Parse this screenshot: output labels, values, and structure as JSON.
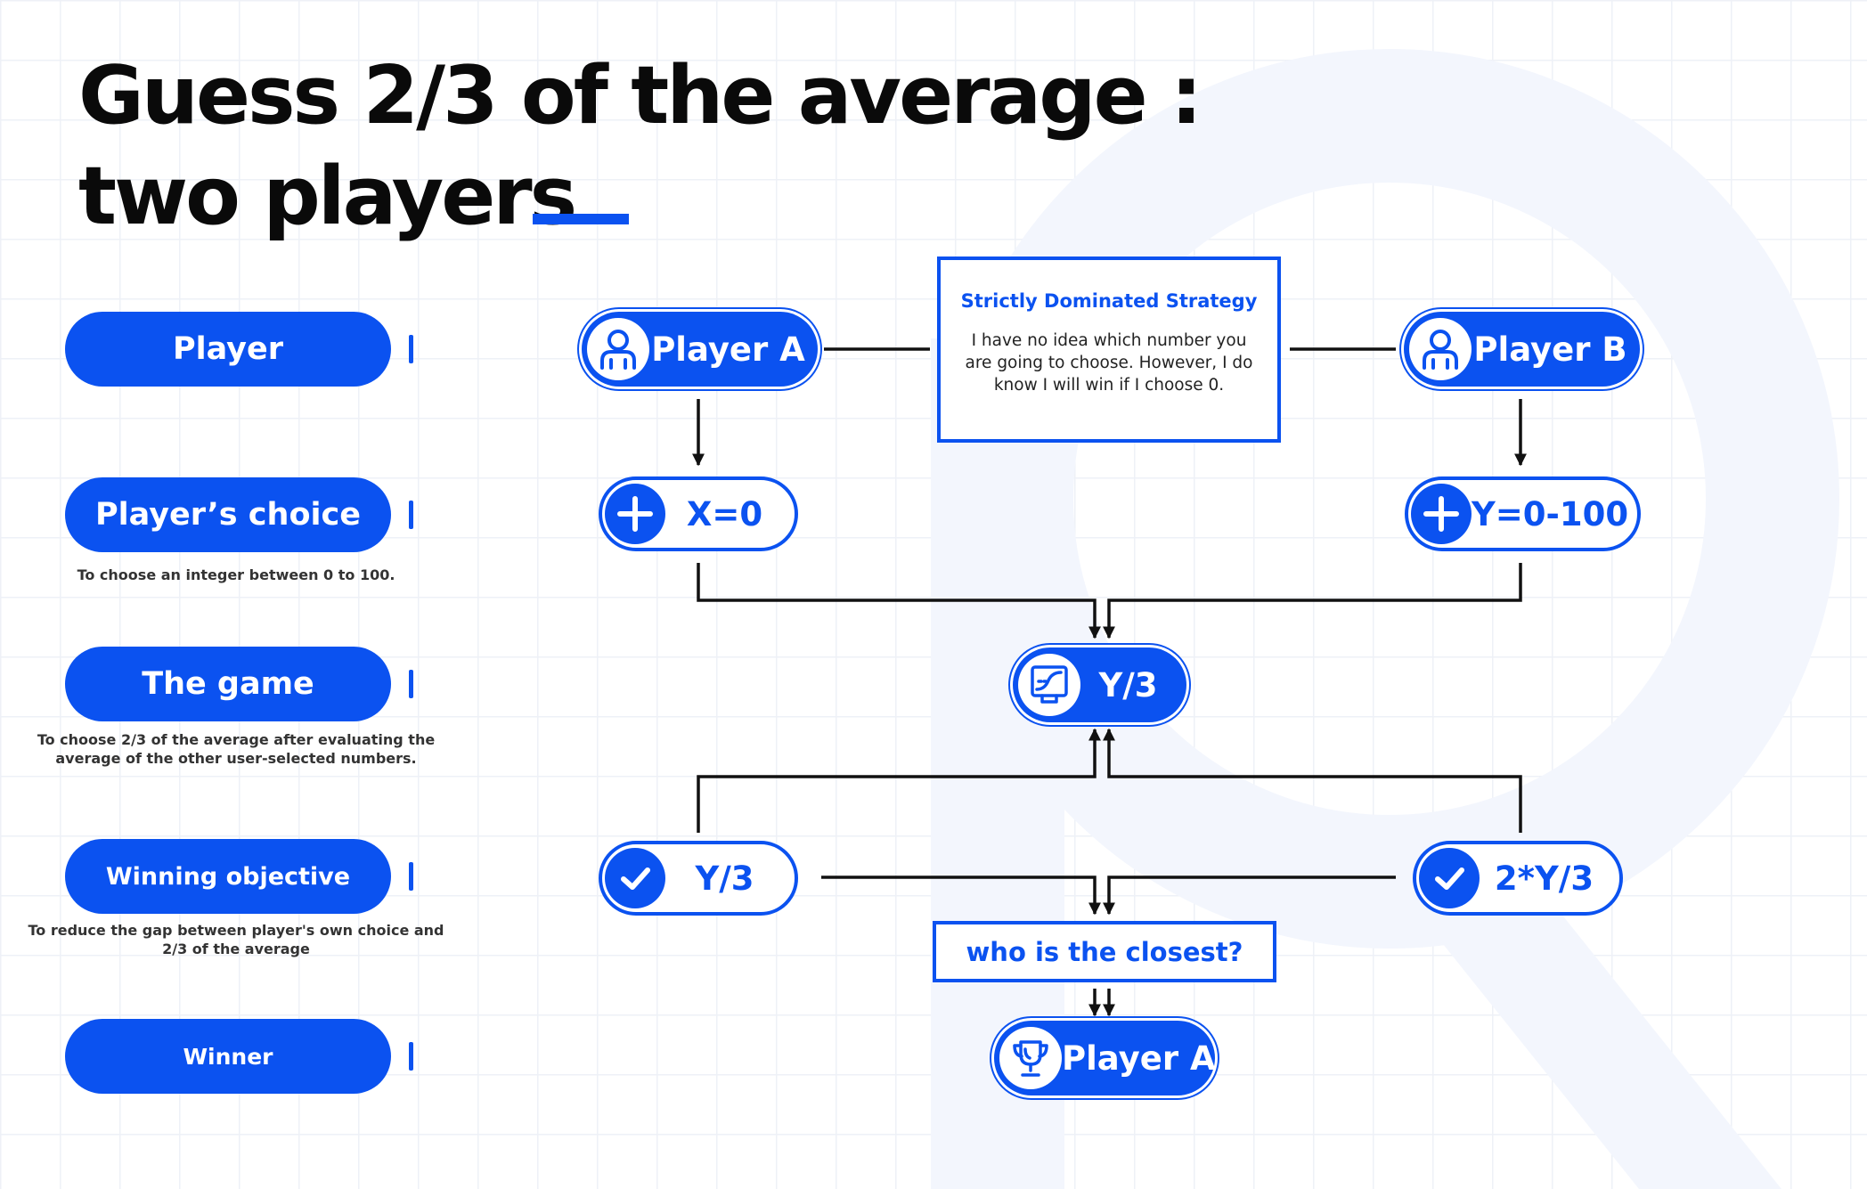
{
  "title": {
    "line1": "Guess 2/3 of the average :",
    "line2": "two players"
  },
  "colors": {
    "accent": "#0b52f0",
    "text": "#0a0a0a",
    "background": "#ffffff",
    "grid": "#eef1f7"
  },
  "categories": [
    {
      "label": "Player",
      "description": ""
    },
    {
      "label": "Player’s choice",
      "description": "To choose an integer between 0 to 100."
    },
    {
      "label": "The game",
      "description": "To choose 2/3 of the average after evaluating the average of the other user-selected numbers."
    },
    {
      "label": "Winning objective",
      "description": "To reduce the gap between player's own choice and 2/3 of the average"
    },
    {
      "label": "Winner",
      "description": ""
    }
  ],
  "nodes": {
    "player_a": {
      "label": "Player A",
      "icon": "person-icon"
    },
    "player_b": {
      "label": "Player B",
      "icon": "person-icon"
    },
    "choice_a": {
      "label": "X=0",
      "icon": "plus-icon"
    },
    "choice_b": {
      "label": "Y=0-100",
      "icon": "plus-icon"
    },
    "game": {
      "label": "Y/3",
      "icon": "chart-monitor-icon"
    },
    "result_a": {
      "label": "Y/3",
      "icon": "check-icon"
    },
    "result_b": {
      "label": "2*Y/3",
      "icon": "check-icon"
    },
    "winner": {
      "label": "Player A",
      "icon": "trophy-icon"
    }
  },
  "strategy": {
    "title": "Strictly Dominated Strategy",
    "text": "I have no idea which number you are going to choose. However, I do know I will win if I choose 0."
  },
  "closest": {
    "label": "who is the closest?"
  }
}
